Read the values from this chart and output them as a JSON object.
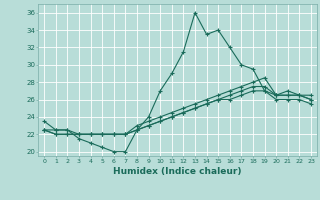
{
  "xlabel": "Humidex (Indice chaleur)",
  "background_color": "#b8ddd8",
  "grid_color": "#ffffff",
  "line_color": "#1a6b5a",
  "x_values": [
    0,
    1,
    2,
    3,
    4,
    5,
    6,
    7,
    8,
    9,
    10,
    11,
    12,
    13,
    14,
    15,
    16,
    17,
    18,
    19,
    20,
    21,
    22,
    23
  ],
  "series": [
    [
      23.5,
      22.5,
      22.5,
      21.5,
      21.0,
      20.5,
      20.0,
      20.0,
      22.5,
      24.0,
      27.0,
      29.0,
      31.5,
      36.0,
      33.5,
      34.0,
      32.0,
      30.0,
      29.5,
      27.0,
      26.5,
      27.0,
      26.5,
      26.5
    ],
    [
      22.5,
      22.5,
      22.5,
      22.0,
      22.0,
      22.0,
      22.0,
      22.0,
      22.5,
      23.0,
      23.5,
      24.0,
      24.5,
      25.0,
      25.5,
      26.0,
      26.5,
      27.0,
      27.5,
      27.5,
      26.5,
      26.5,
      26.5,
      26.0
    ],
    [
      22.5,
      22.0,
      22.0,
      22.0,
      22.0,
      22.0,
      22.0,
      22.0,
      22.5,
      23.0,
      23.5,
      24.0,
      24.5,
      25.0,
      25.5,
      26.0,
      26.0,
      26.5,
      27.0,
      27.0,
      26.0,
      26.0,
      26.0,
      25.5
    ],
    [
      22.5,
      22.0,
      22.0,
      22.0,
      22.0,
      22.0,
      22.0,
      22.0,
      23.0,
      23.5,
      24.0,
      24.5,
      25.0,
      25.5,
      26.0,
      26.5,
      27.0,
      27.5,
      28.0,
      28.5,
      26.5,
      26.5,
      26.5,
      26.0
    ]
  ],
  "ylim": [
    19.5,
    37.0
  ],
  "xlim": [
    -0.5,
    23.5
  ],
  "yticks": [
    20,
    22,
    24,
    26,
    28,
    30,
    32,
    34,
    36
  ],
  "xticks": [
    0,
    1,
    2,
    3,
    4,
    5,
    6,
    7,
    8,
    9,
    10,
    11,
    12,
    13,
    14,
    15,
    16,
    17,
    18,
    19,
    20,
    21,
    22,
    23
  ]
}
